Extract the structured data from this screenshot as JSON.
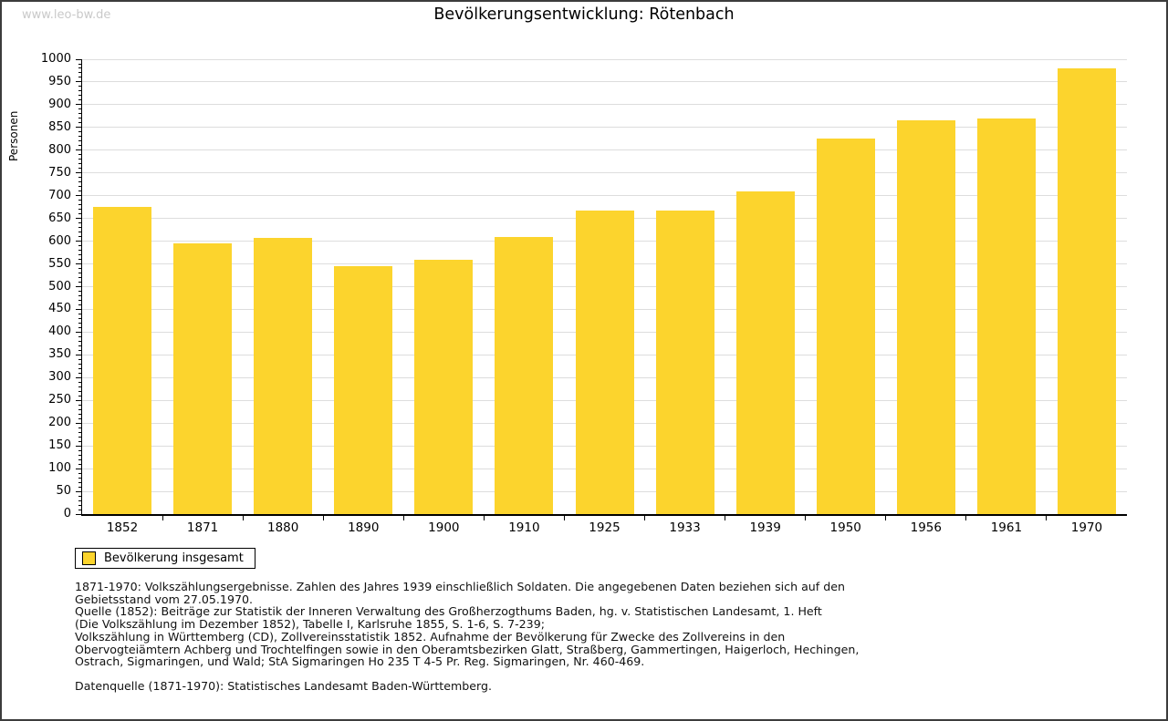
{
  "page": {
    "watermark": "www.leo-bw.de",
    "title": "Bevölkerungsentwicklung: Rötenbach"
  },
  "chart_data": {
    "type": "bar",
    "title": "Bevölkerungsentwicklung: Rötenbach",
    "xlabel": "",
    "ylabel": "Personen",
    "categories": [
      "1852",
      "1871",
      "1880",
      "1890",
      "1900",
      "1910",
      "1925",
      "1933",
      "1939",
      "1950",
      "1956",
      "1961",
      "1970"
    ],
    "series": [
      {
        "name": "Bevölkerung insgesamt",
        "values": [
          675,
          595,
          608,
          545,
          560,
          610,
          668,
          668,
          710,
          825,
          865,
          870,
          980
        ]
      }
    ],
    "ylim": [
      0,
      1000
    ],
    "ytick_step": 50,
    "minor_tick_step": 10,
    "grid": true,
    "bar_color": "#FCD42D",
    "legend_position": "bottom-left"
  },
  "legend": {
    "label": "Bevölkerung insgesamt",
    "swatch_color": "#FCD42D"
  },
  "footnote": {
    "lines": [
      "1871-1970: Volkszählungsergebnisse. Zahlen des Jahres 1939 einschließlich Soldaten. Die angegebenen Daten beziehen sich auf den",
      "Gebietsstand vom 27.05.1970.",
      "Quelle (1852): Beiträge zur Statistik der Inneren Verwaltung des Großherzogthums Baden, hg. v. Statistischen Landesamt, 1. Heft",
      "(Die Volkszählung im Dezember 1852), Tabelle I, Karlsruhe 1855, S. 1-6, S. 7-239;",
      "Volkszählung in Württemberg (CD), Zollvereinsstatistik 1852. Aufnahme der Bevölkerung für Zwecke des Zollvereins in den",
      "Obervogteiämtern Achberg und Trochtelfingen sowie in den Oberamtsbezirken Glatt, Straßberg, Gammertingen, Haigerloch, Hechingen,",
      "Ostrach, Sigmaringen, und Wald; StA Sigmaringen Ho 235 T 4-5 Pr. Reg. Sigmaringen, Nr. 460-469."
    ],
    "datasource": "Datenquelle (1871-1970): Statistisches Landesamt Baden-Württemberg."
  },
  "colors": {
    "bar": "#FCD42D",
    "grid": "#DDDDDD",
    "axis": "#000000",
    "watermark": "#C9C9C9",
    "border": "#3C3C3C"
  }
}
